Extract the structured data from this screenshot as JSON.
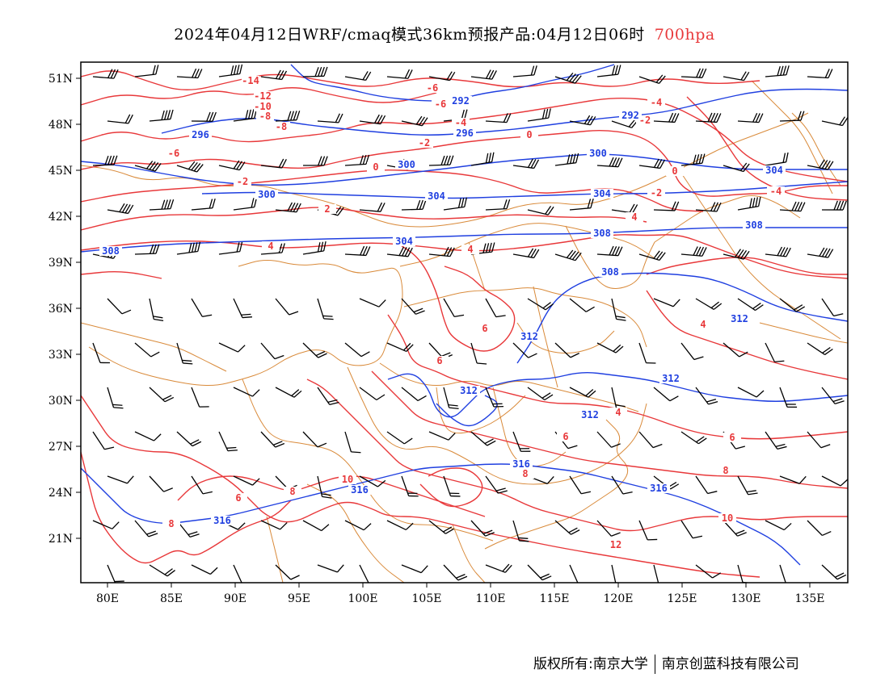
{
  "header": {
    "title": "2024年04月12日WRF/cmaq模式36km预报产品:04月12日06时",
    "level": "700hpa",
    "level_color": "#e8383a"
  },
  "map": {
    "lat_labels": [
      "51N",
      "48N",
      "45N",
      "42N",
      "39N",
      "36N",
      "33N",
      "30N",
      "27N",
      "24N",
      "21N"
    ],
    "lon_labels": [
      "80E",
      "85E",
      "90E",
      "95E",
      "100E",
      "105E",
      "110E",
      "115E",
      "120E",
      "125E",
      "130E",
      "135E"
    ],
    "colors": {
      "temperature": "#e8383a",
      "geopotential": "#1f3fe0",
      "borders": "#d98a3a",
      "wind": "#000000"
    },
    "temp_labels": [
      "-14",
      "-12",
      "-10",
      "-8",
      "-8",
      "-6",
      "-6",
      "-6",
      "-4",
      "-4",
      "-4",
      "-2",
      "-2",
      "-2",
      "-2",
      "0",
      "0",
      "0",
      "2",
      "4",
      "4",
      "4",
      "4",
      "4",
      "6",
      "6",
      "6",
      "6",
      "6",
      "8",
      "8",
      "8",
      "8",
      "10",
      "10",
      "12"
    ],
    "height_labels": [
      "292",
      "292",
      "296",
      "296",
      "300",
      "300",
      "300",
      "304",
      "304",
      "304",
      "304",
      "308",
      "308",
      "308",
      "308",
      "312",
      "312",
      "312",
      "312",
      "312",
      "316",
      "316",
      "316",
      "316"
    ]
  },
  "footer": {
    "left": "版权所有:南京大学",
    "right": "南京创蓝科技有限公司"
  }
}
